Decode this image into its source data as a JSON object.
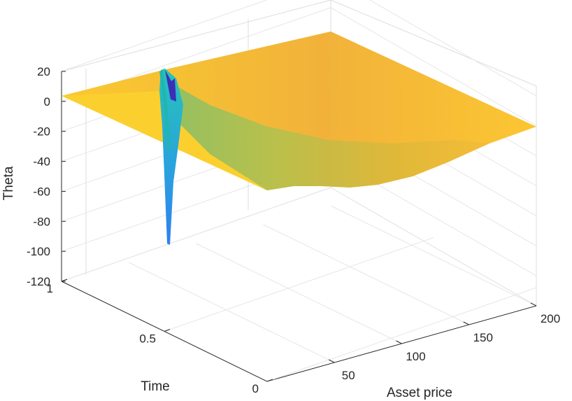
{
  "chart_data": {
    "type": "surface",
    "xlabel": "Asset price",
    "ylabel": "Time",
    "zlabel": "Theta",
    "xticks": [
      50,
      100,
      150,
      200
    ],
    "yticks": [
      0,
      0.5,
      1
    ],
    "zticks": [
      20,
      0,
      -20,
      -40,
      -60,
      -80,
      -100,
      -120
    ],
    "xlim": [
      0,
      200
    ],
    "ylim": [
      0,
      1
    ],
    "zlim": [
      -120,
      20
    ],
    "grid": true,
    "colormap": "parula",
    "strike": 50,
    "surface_samples": [
      {
        "time": 0,
        "asset_price": 200,
        "theta": -5
      },
      {
        "time": 1,
        "asset_price": 0,
        "theta": 0
      },
      {
        "time": 1,
        "asset_price": 200,
        "theta": 0
      },
      {
        "time": 0,
        "asset_price": 50,
        "theta": -97
      },
      {
        "time": 0,
        "asset_price": 100,
        "theta": -2
      }
    ]
  }
}
